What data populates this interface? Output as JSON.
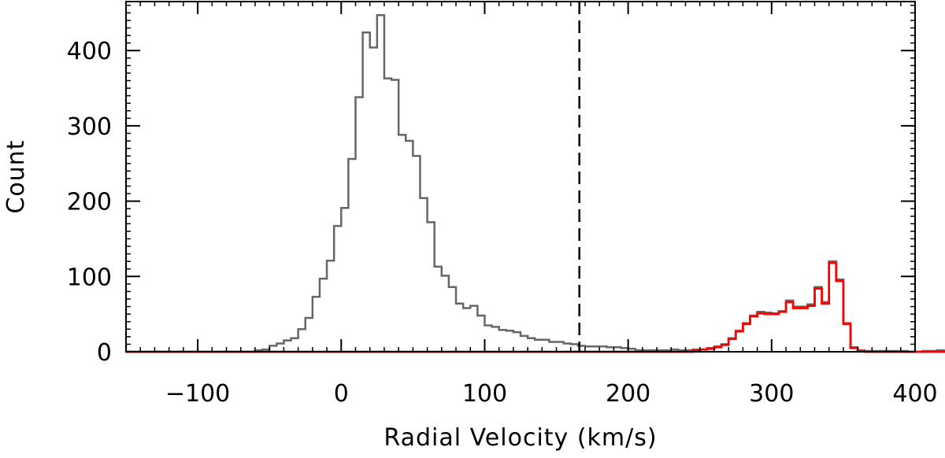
{
  "chart_data": {
    "type": "histogram",
    "xlabel": "Radial Velocity (km/s)",
    "ylabel": "Count",
    "xlim": [
      -150,
      400
    ],
    "ylim": [
      0,
      465
    ],
    "x_major_ticks": [
      -100,
      0,
      100,
      200,
      300,
      400
    ],
    "x_minor_step": 10,
    "y_major_ticks": [
      0,
      100,
      200,
      300,
      400
    ],
    "y_minor_step": 10,
    "bin_width": 5,
    "vline": {
      "x": 166,
      "style": "dashed",
      "color": "#000000"
    },
    "series": [
      {
        "color": "#666666",
        "bins_start": -150,
        "values": [
          0,
          0,
          0,
          0,
          0,
          0,
          0,
          0,
          0,
          0,
          0,
          0,
          0,
          0,
          0,
          0,
          0,
          0,
          2,
          3,
          8,
          11,
          15,
          18,
          30,
          45,
          73,
          97,
          121,
          167,
          191,
          256,
          338,
          424,
          404,
          447,
          363,
          361,
          288,
          280,
          260,
          204,
          172,
          113,
          101,
          86,
          64,
          58,
          61,
          48,
          35,
          33,
          29,
          28,
          26,
          21,
          18,
          16,
          16,
          13,
          13,
          11,
          10,
          8,
          7,
          7,
          7,
          6,
          6,
          5,
          4,
          2,
          2,
          2,
          2,
          2,
          3,
          2,
          2,
          3,
          3,
          5,
          7,
          10,
          18,
          28,
          38,
          48,
          53,
          52,
          51,
          54,
          68,
          60,
          60,
          63,
          86,
          66,
          120,
          96,
          38,
          6,
          2,
          1,
          1,
          1,
          1,
          1,
          1,
          0,
          0,
          1,
          1,
          2,
          1,
          0,
          1,
          0,
          0,
          0
        ]
      },
      {
        "color": "#ff0000",
        "bins_start": -150,
        "values": [
          0,
          0,
          0,
          0,
          0,
          0,
          0,
          0,
          0,
          0,
          0,
          0,
          0,
          0,
          0,
          0,
          0,
          0,
          0,
          0,
          0,
          0,
          0,
          0,
          0,
          0,
          0,
          0,
          0,
          0,
          0,
          0,
          0,
          0,
          0,
          0,
          0,
          0,
          0,
          0,
          0,
          0,
          0,
          0,
          0,
          0,
          0,
          0,
          0,
          0,
          0,
          0,
          0,
          0,
          0,
          0,
          0,
          0,
          0,
          0,
          0,
          0,
          0,
          0,
          0,
          0,
          0,
          0,
          0,
          0,
          0,
          0,
          0,
          0,
          0,
          0,
          0,
          0,
          0,
          2,
          3,
          4,
          6,
          9,
          17,
          27,
          37,
          47,
          51,
          50,
          50,
          53,
          66,
          58,
          58,
          61,
          84,
          64,
          118,
          94,
          37,
          5,
          1,
          0,
          0,
          0,
          0,
          0,
          0,
          0,
          0,
          0,
          0,
          0,
          0,
          0,
          0,
          0,
          0,
          0
        ]
      }
    ]
  }
}
